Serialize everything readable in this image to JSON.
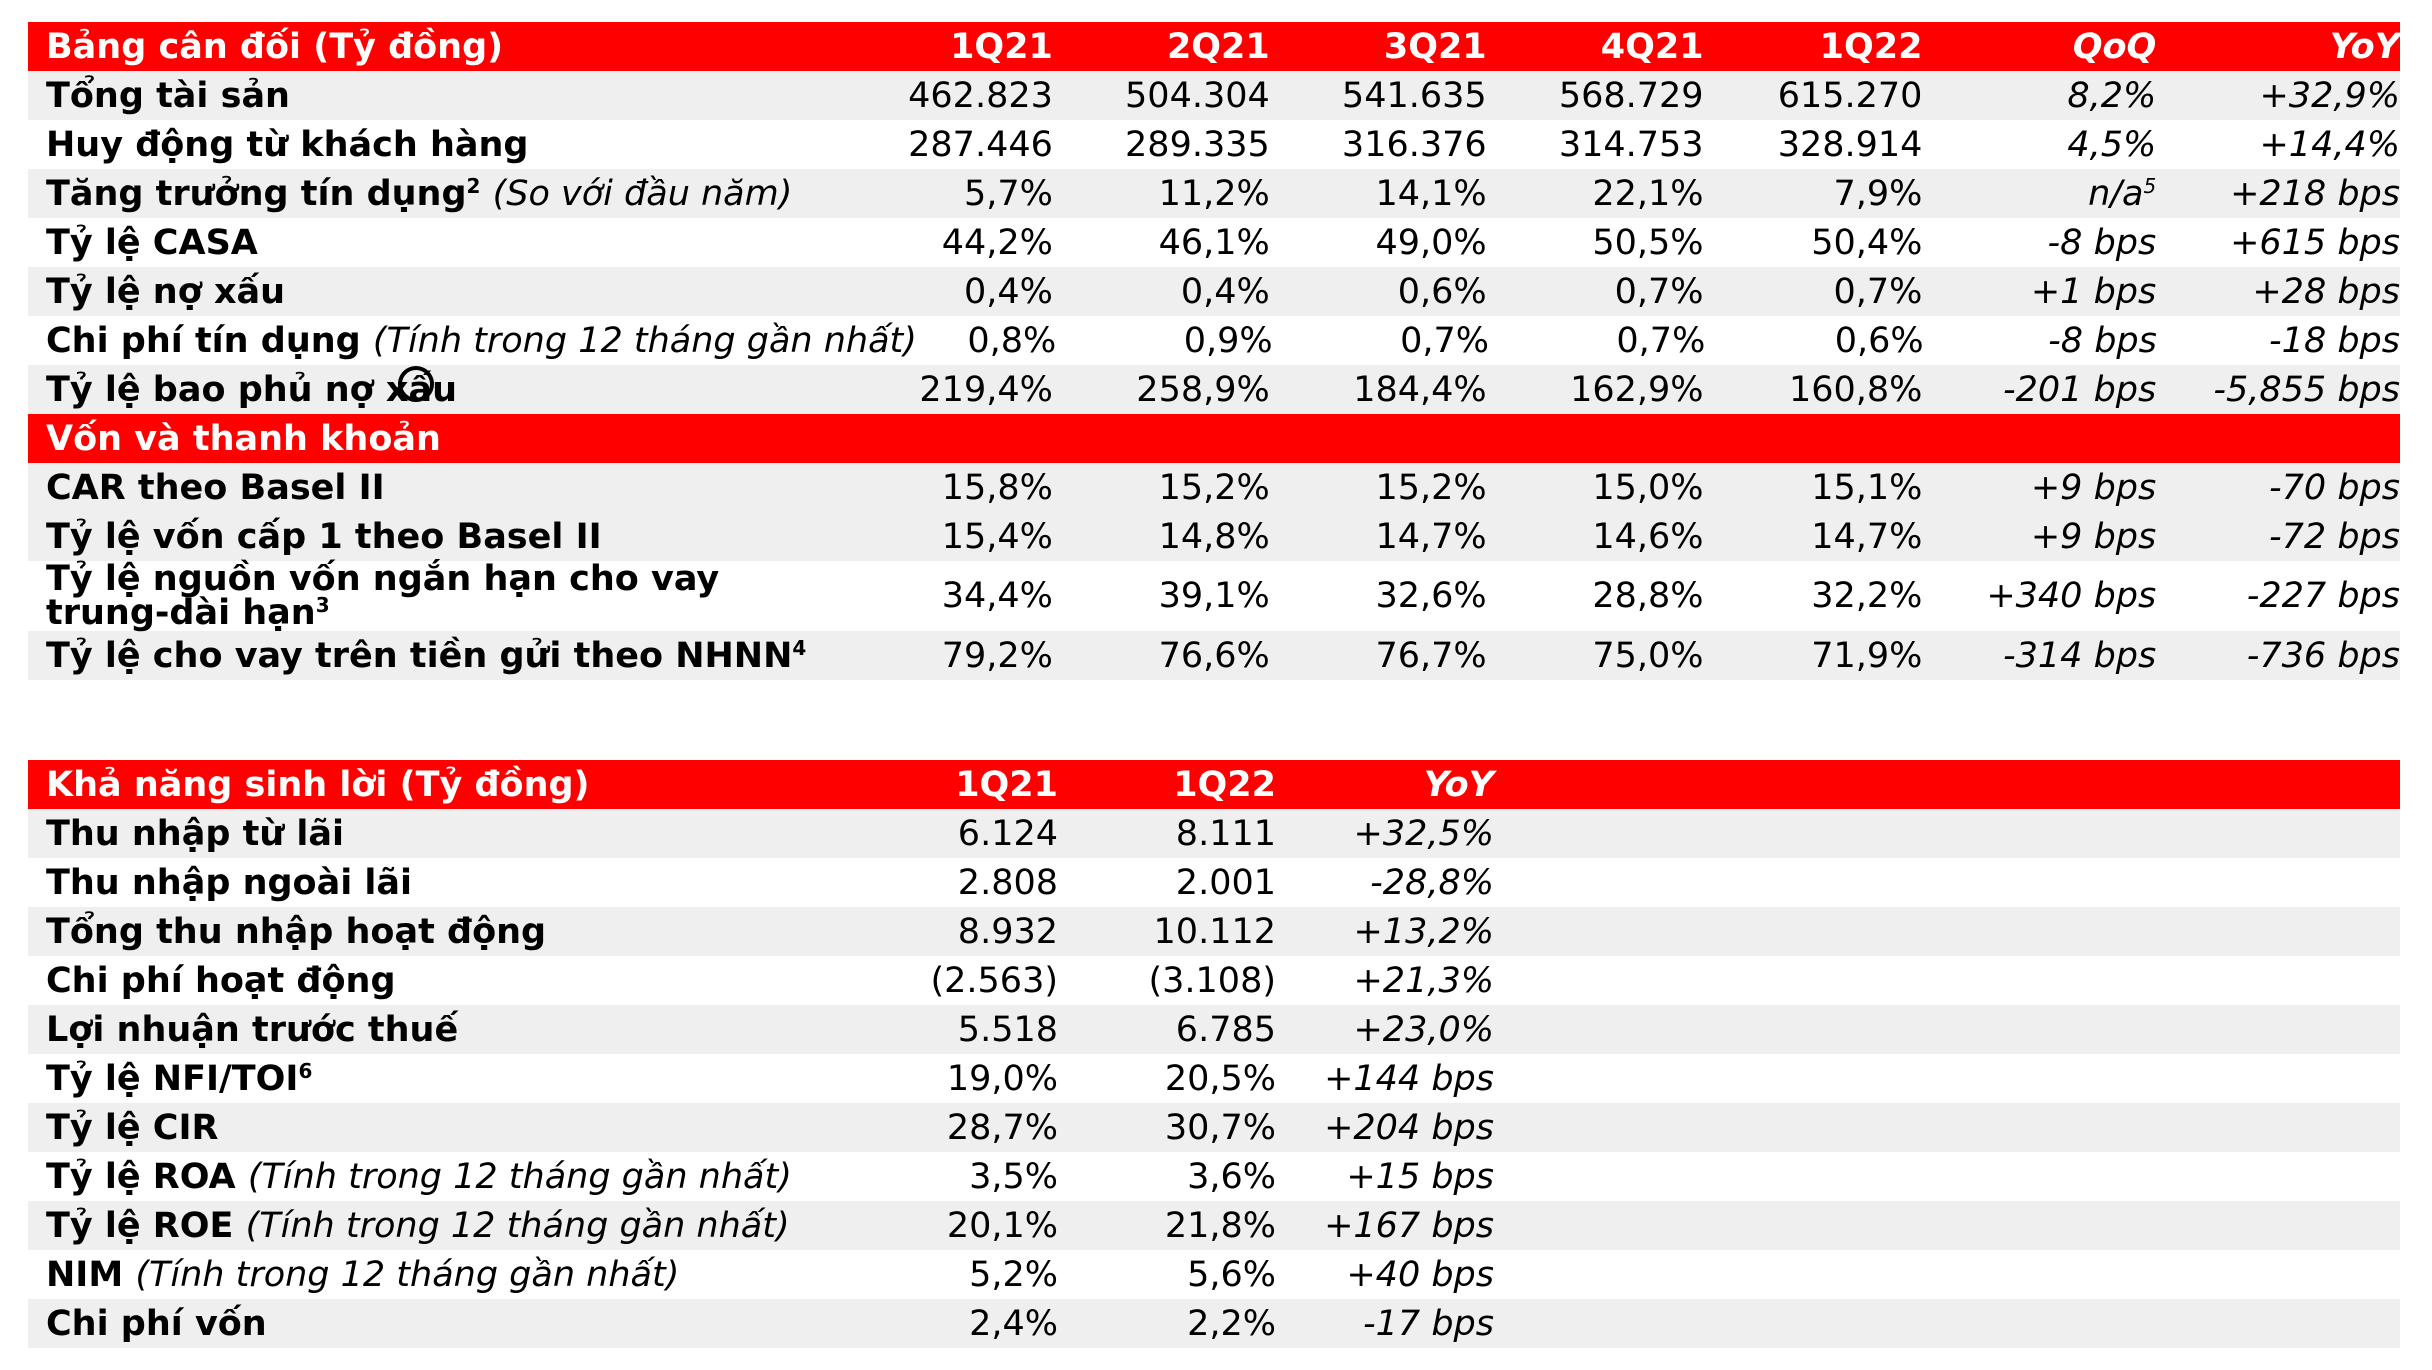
{
  "balance": {
    "header": {
      "title": "Bảng cân đối (Tỷ đồng)",
      "cols": [
        "1Q21",
        "2Q21",
        "3Q21",
        "4Q21",
        "1Q22",
        "QoQ",
        "YoY"
      ]
    },
    "rows": [
      {
        "label": "Tổng tài sản",
        "sup": "",
        "note": "",
        "v": [
          "462.823",
          "504.304",
          "541.635",
          "568.729",
          "615.270",
          "8,2%",
          "+32,9%"
        ]
      },
      {
        "label": "Huy động từ khách hàng",
        "sup": "",
        "note": "",
        "v": [
          "287.446",
          "289.335",
          "316.376",
          "314.753",
          "328.914",
          "4,5%",
          "+14,4%"
        ]
      },
      {
        "label": "Tăng trưởng tín dụng",
        "sup": "2",
        "note": "(So với đầu năm)",
        "v": [
          "5,7%",
          "11,2%",
          "14,1%",
          "22,1%",
          "7,9%",
          "n/a",
          "+218 bps"
        ],
        "qoq_sup": "5"
      },
      {
        "label": "Tỷ lệ CASA",
        "sup": "",
        "note": "",
        "v": [
          "44,2%",
          "46,1%",
          "49,0%",
          "50,5%",
          "50,4%",
          "-8 bps",
          "+615 bps"
        ]
      },
      {
        "label": "Tỷ lệ nợ xấu",
        "sup": "",
        "note": "",
        "v": [
          "0,4%",
          "0,4%",
          "0,6%",
          "0,7%",
          "0,7%",
          "+1 bps",
          "+28 bps"
        ]
      },
      {
        "label": "Chi phí tín dụng",
        "sup": "",
        "note": "(Tính trong 12 tháng gần nhất)",
        "v": [
          "0,8%",
          "0,9%",
          "0,7%",
          "0,7%",
          "0,6%",
          "-8 bps",
          "-18 bps"
        ]
      },
      {
        "label": "Tỷ lệ bao phủ nợ xấu",
        "sup": "",
        "note": "",
        "v": [
          "219,4%",
          "258,9%",
          "184,4%",
          "162,9%",
          "160,8%",
          "-201 bps",
          "-5,855 bps"
        ]
      }
    ],
    "capital_title": "Vốn và thanh khoản",
    "capital_rows": [
      {
        "label": "CAR theo Basel II",
        "sup": "",
        "v": [
          "15,8%",
          "15,2%",
          "15,2%",
          "15,0%",
          "15,1%",
          "+9 bps",
          "-70 bps"
        ]
      },
      {
        "label": "Tỷ lệ vốn cấp 1 theo Basel II",
        "sup": "",
        "v": [
          "15,4%",
          "14,8%",
          "14,7%",
          "14,6%",
          "14,7%",
          "+9 bps",
          "-72 bps"
        ]
      },
      {
        "label": "Tỷ lệ nguồn vốn ngắn hạn cho vay trung-dài hạn",
        "sup": "3",
        "v": [
          "34,4%",
          "39,1%",
          "32,6%",
          "28,8%",
          "32,2%",
          "+340 bps",
          "-227 bps"
        ]
      },
      {
        "label": "Tỷ lệ cho vay trên tiền gửi theo NHNN",
        "sup": "4",
        "v": [
          "79,2%",
          "76,6%",
          "76,7%",
          "75,0%",
          "71,9%",
          "-314 bps",
          "-736 bps"
        ]
      }
    ]
  },
  "profit": {
    "header": {
      "title": "Khả năng sinh lời (Tỷ đồng)",
      "cols": [
        "1Q21",
        "1Q22",
        "YoY"
      ]
    },
    "rows": [
      {
        "label": "Thu nhập từ lãi",
        "sup": "",
        "note": "",
        "v": [
          "6.124",
          "8.111",
          "+32,5%"
        ]
      },
      {
        "label": "Thu nhập ngoài lãi",
        "sup": "",
        "note": "",
        "v": [
          "2.808",
          "2.001",
          "-28,8%"
        ]
      },
      {
        "label": "Tổng thu nhập hoạt động",
        "sup": "",
        "note": "",
        "v": [
          "8.932",
          "10.112",
          "+13,2%"
        ]
      },
      {
        "label": "Chi phí hoạt động",
        "sup": "",
        "note": "",
        "v": [
          "(2.563)",
          "(3.108)",
          "+21,3%"
        ]
      },
      {
        "label": "Lợi nhuận trước thuế",
        "sup": "",
        "note": "",
        "v": [
          "5.518",
          "6.785",
          "+23,0%"
        ]
      },
      {
        "label": "Tỷ lệ NFI/TOI",
        "sup": "6",
        "note": "",
        "v": [
          "19,0%",
          "20,5%",
          "+144 bps"
        ]
      },
      {
        "label": "Tỷ lệ CIR",
        "sup": "",
        "note": "",
        "v": [
          "28,7%",
          "30,7%",
          "+204 bps"
        ]
      },
      {
        "label": "Tỷ lệ ROA",
        "sup": "",
        "note": "(Tính trong 12 tháng gần nhất)",
        "v": [
          "3,5%",
          "3,6%",
          "+15 bps"
        ]
      },
      {
        "label": "Tỷ lệ ROE",
        "sup": "",
        "note": "(Tính trong 12 tháng gần nhất)",
        "v": [
          "20,1%",
          "21,8%",
          "+167 bps"
        ]
      },
      {
        "label": "NIM",
        "sup": "",
        "note": "(Tính trong 12 tháng gần nhất)",
        "v": [
          "5,2%",
          "5,6%",
          "+40 bps"
        ]
      },
      {
        "label": "Chi phí vốn",
        "sup": "",
        "note": "",
        "v": [
          "2,4%",
          "2,2%",
          "-17 bps"
        ]
      }
    ]
  },
  "colors": {
    "header_bg": "#ff0000",
    "header_text": "#ffffff",
    "alt_row": "#efefef"
  }
}
